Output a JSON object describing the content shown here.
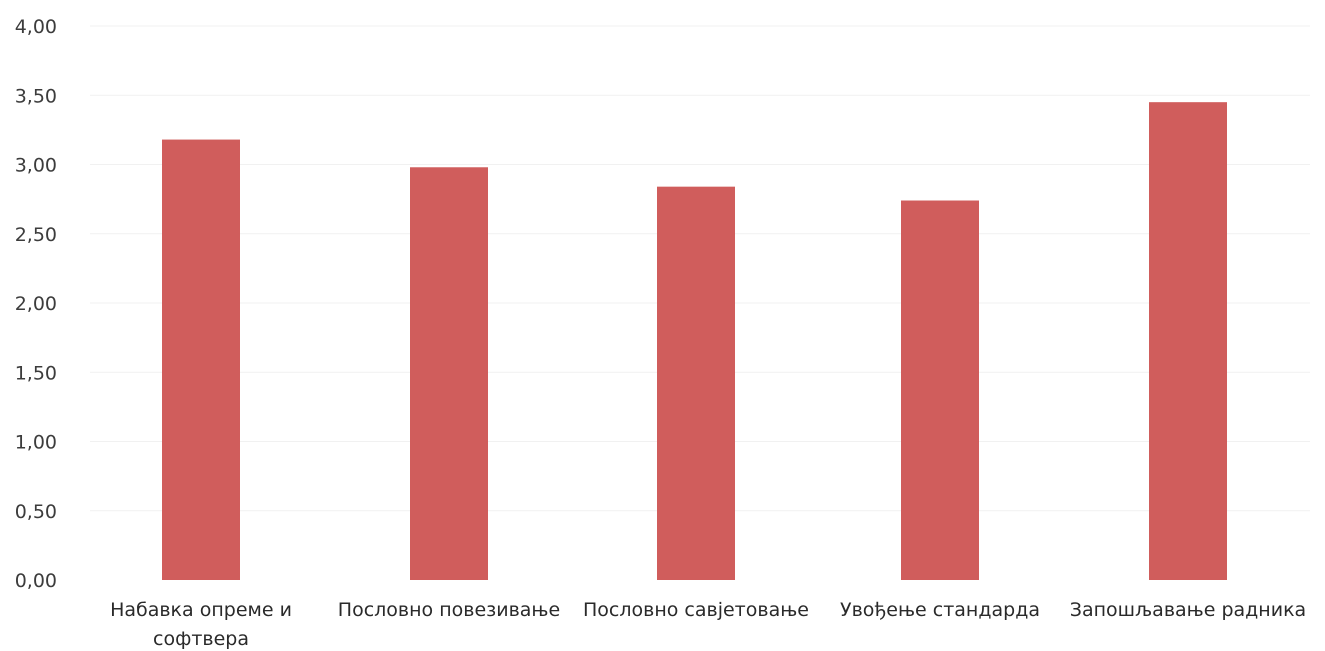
{
  "chart_data": {
    "type": "bar",
    "categories": [
      [
        "Набавка опреме и",
        "софтвера"
      ],
      [
        "Пословно повезивање"
      ],
      [
        "Пословно савјетовање"
      ],
      [
        "Увођење стандарда"
      ],
      [
        "Запошљавање радника"
      ]
    ],
    "values": [
      3.18,
      2.98,
      2.84,
      2.74,
      3.45
    ],
    "y_ticks": [
      "0,00",
      "0,50",
      "1,00",
      "1,50",
      "2,00",
      "2,50",
      "3,00",
      "3,50",
      "4,00"
    ],
    "ylim": [
      0,
      4
    ],
    "y_step": 0.5,
    "grid": true,
    "legend": "none",
    "bar_color": "#d05d5c",
    "title": "",
    "xlabel": "",
    "ylabel": ""
  }
}
